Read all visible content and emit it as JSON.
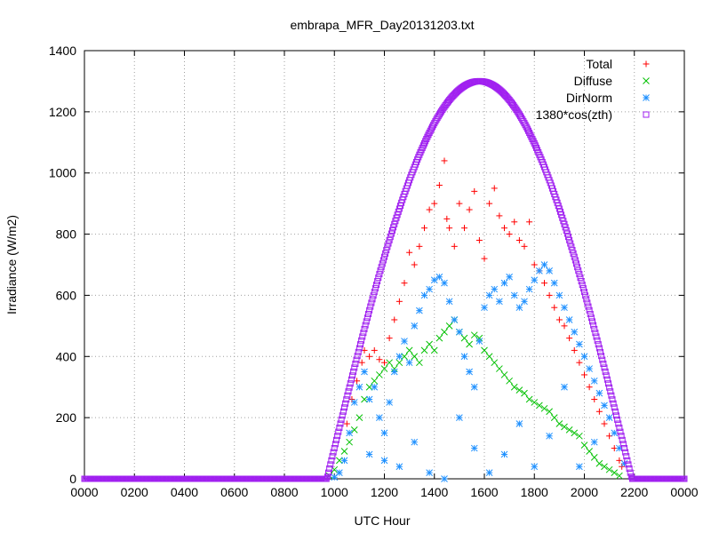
{
  "chart_data": {
    "type": "scatter",
    "title": "embrapa_MFR_Day20131203.txt",
    "xlabel": "UTC Hour",
    "ylabel": "Irradiance (W/m2)",
    "xlim": [
      0,
      24
    ],
    "ylim": [
      0,
      1400
    ],
    "x_ticks": [
      0,
      2,
      4,
      6,
      8,
      10,
      12,
      14,
      16,
      18,
      20,
      22,
      24
    ],
    "x_tick_labels": [
      "0000",
      "0200",
      "0400",
      "0600",
      "0800",
      "1000",
      "1200",
      "1400",
      "1600",
      "1800",
      "2000",
      "2200",
      "0000"
    ],
    "y_ticks": [
      0,
      200,
      400,
      600,
      800,
      1000,
      1200,
      1400
    ],
    "y_tick_labels": [
      "0",
      "200",
      "400",
      "600",
      "800",
      "1000",
      "1200",
      "1400"
    ],
    "grid": true,
    "legend_position": "top-right",
    "series": [
      {
        "name": "Total",
        "color": "#ff0000",
        "marker": "plus",
        "points": [
          [
            10.5,
            180
          ],
          [
            10.7,
            260
          ],
          [
            10.9,
            320
          ],
          [
            11.1,
            380
          ],
          [
            11.2,
            420
          ],
          [
            11.4,
            400
          ],
          [
            11.6,
            420
          ],
          [
            11.8,
            390
          ],
          [
            12.0,
            380
          ],
          [
            12.2,
            460
          ],
          [
            12.4,
            520
          ],
          [
            12.6,
            580
          ],
          [
            12.8,
            640
          ],
          [
            13.0,
            740
          ],
          [
            13.2,
            700
          ],
          [
            13.4,
            760
          ],
          [
            13.6,
            820
          ],
          [
            13.8,
            880
          ],
          [
            14.0,
            900
          ],
          [
            14.2,
            960
          ],
          [
            14.4,
            1040
          ],
          [
            14.5,
            850
          ],
          [
            14.6,
            820
          ],
          [
            14.8,
            760
          ],
          [
            15.0,
            900
          ],
          [
            15.2,
            820
          ],
          [
            15.4,
            880
          ],
          [
            15.6,
            940
          ],
          [
            15.8,
            780
          ],
          [
            16.0,
            720
          ],
          [
            16.2,
            900
          ],
          [
            16.4,
            950
          ],
          [
            16.6,
            860
          ],
          [
            16.8,
            820
          ],
          [
            17.0,
            800
          ],
          [
            17.2,
            840
          ],
          [
            17.4,
            780
          ],
          [
            17.6,
            760
          ],
          [
            17.8,
            840
          ],
          [
            18.0,
            700
          ],
          [
            18.2,
            680
          ],
          [
            18.4,
            640
          ],
          [
            18.6,
            600
          ],
          [
            18.8,
            560
          ],
          [
            19.0,
            520
          ],
          [
            19.2,
            500
          ],
          [
            19.4,
            460
          ],
          [
            19.6,
            420
          ],
          [
            19.8,
            380
          ],
          [
            20.0,
            340
          ],
          [
            20.2,
            300
          ],
          [
            20.4,
            260
          ],
          [
            20.6,
            220
          ],
          [
            20.8,
            180
          ],
          [
            21.0,
            140
          ],
          [
            21.2,
            100
          ],
          [
            21.4,
            60
          ],
          [
            21.5,
            40
          ]
        ]
      },
      {
        "name": "Diffuse",
        "color": "#00c000",
        "marker": "cross",
        "points": [
          [
            9.8,
            10
          ],
          [
            10.0,
            30
          ],
          [
            10.2,
            60
          ],
          [
            10.4,
            90
          ],
          [
            10.6,
            120
          ],
          [
            10.8,
            160
          ],
          [
            11.0,
            200
          ],
          [
            11.2,
            260
          ],
          [
            11.4,
            300
          ],
          [
            11.6,
            320
          ],
          [
            11.8,
            340
          ],
          [
            12.0,
            360
          ],
          [
            12.2,
            380
          ],
          [
            12.4,
            360
          ],
          [
            12.6,
            380
          ],
          [
            12.8,
            400
          ],
          [
            13.0,
            420
          ],
          [
            13.2,
            400
          ],
          [
            13.4,
            380
          ],
          [
            13.6,
            420
          ],
          [
            13.8,
            440
          ],
          [
            14.0,
            420
          ],
          [
            14.2,
            460
          ],
          [
            14.4,
            480
          ],
          [
            14.6,
            500
          ],
          [
            14.8,
            520
          ],
          [
            15.0,
            480
          ],
          [
            15.2,
            460
          ],
          [
            15.4,
            440
          ],
          [
            15.6,
            470
          ],
          [
            15.8,
            460
          ],
          [
            16.0,
            420
          ],
          [
            16.2,
            400
          ],
          [
            16.4,
            380
          ],
          [
            16.6,
            360
          ],
          [
            16.8,
            340
          ],
          [
            17.0,
            320
          ],
          [
            17.2,
            300
          ],
          [
            17.4,
            290
          ],
          [
            17.6,
            280
          ],
          [
            17.8,
            260
          ],
          [
            18.0,
            250
          ],
          [
            18.2,
            240
          ],
          [
            18.4,
            230
          ],
          [
            18.6,
            220
          ],
          [
            18.8,
            200
          ],
          [
            19.0,
            180
          ],
          [
            19.2,
            170
          ],
          [
            19.4,
            160
          ],
          [
            19.6,
            150
          ],
          [
            19.8,
            140
          ],
          [
            20.0,
            110
          ],
          [
            20.2,
            90
          ],
          [
            20.4,
            70
          ],
          [
            20.6,
            50
          ],
          [
            20.8,
            40
          ],
          [
            21.0,
            30
          ],
          [
            21.2,
            20
          ],
          [
            21.4,
            10
          ]
        ]
      },
      {
        "name": "DirNorm",
        "color": "#1e90ff",
        "marker": "star",
        "points": [
          [
            10.0,
            5
          ],
          [
            10.2,
            20
          ],
          [
            10.4,
            60
          ],
          [
            10.6,
            150
          ],
          [
            10.8,
            250
          ],
          [
            11.0,
            300
          ],
          [
            11.2,
            350
          ],
          [
            11.4,
            260
          ],
          [
            11.6,
            300
          ],
          [
            11.8,
            200
          ],
          [
            12.0,
            150
          ],
          [
            12.2,
            250
          ],
          [
            12.4,
            350
          ],
          [
            12.6,
            400
          ],
          [
            12.8,
            450
          ],
          [
            13.0,
            380
          ],
          [
            13.2,
            500
          ],
          [
            13.4,
            550
          ],
          [
            13.6,
            600
          ],
          [
            13.8,
            620
          ],
          [
            14.0,
            650
          ],
          [
            14.2,
            660
          ],
          [
            14.4,
            640
          ],
          [
            14.6,
            580
          ],
          [
            14.8,
            520
          ],
          [
            15.0,
            480
          ],
          [
            15.2,
            400
          ],
          [
            15.4,
            350
          ],
          [
            15.6,
            300
          ],
          [
            15.8,
            450
          ],
          [
            16.0,
            560
          ],
          [
            16.2,
            600
          ],
          [
            16.4,
            620
          ],
          [
            16.6,
            580
          ],
          [
            16.8,
            640
          ],
          [
            17.0,
            660
          ],
          [
            17.2,
            600
          ],
          [
            17.4,
            560
          ],
          [
            17.6,
            580
          ],
          [
            17.8,
            620
          ],
          [
            18.0,
            650
          ],
          [
            18.2,
            680
          ],
          [
            18.4,
            700
          ],
          [
            18.6,
            680
          ],
          [
            18.8,
            640
          ],
          [
            19.0,
            600
          ],
          [
            19.2,
            560
          ],
          [
            19.4,
            520
          ],
          [
            19.6,
            480
          ],
          [
            19.8,
            440
          ],
          [
            20.0,
            400
          ],
          [
            20.2,
            360
          ],
          [
            20.4,
            320
          ],
          [
            20.6,
            280
          ],
          [
            20.8,
            240
          ],
          [
            21.0,
            200
          ],
          [
            21.2,
            150
          ],
          [
            21.4,
            100
          ],
          [
            21.6,
            50
          ],
          [
            11.4,
            80
          ],
          [
            12.0,
            60
          ],
          [
            12.6,
            40
          ],
          [
            13.2,
            120
          ],
          [
            13.8,
            20
          ],
          [
            14.4,
            0
          ],
          [
            15.0,
            200
          ],
          [
            15.6,
            100
          ],
          [
            16.2,
            20
          ],
          [
            16.8,
            80
          ],
          [
            17.4,
            180
          ],
          [
            18.0,
            40
          ],
          [
            18.6,
            140
          ],
          [
            19.2,
            300
          ],
          [
            19.8,
            40
          ],
          [
            20.4,
            120
          ]
        ]
      },
      {
        "name": "1380*cos(zth)",
        "color": "#a020f0",
        "marker": "square",
        "sunrise": 9.7,
        "sunset": 21.9,
        "peak_x": 15.8,
        "peak_y": 1300
      }
    ]
  }
}
